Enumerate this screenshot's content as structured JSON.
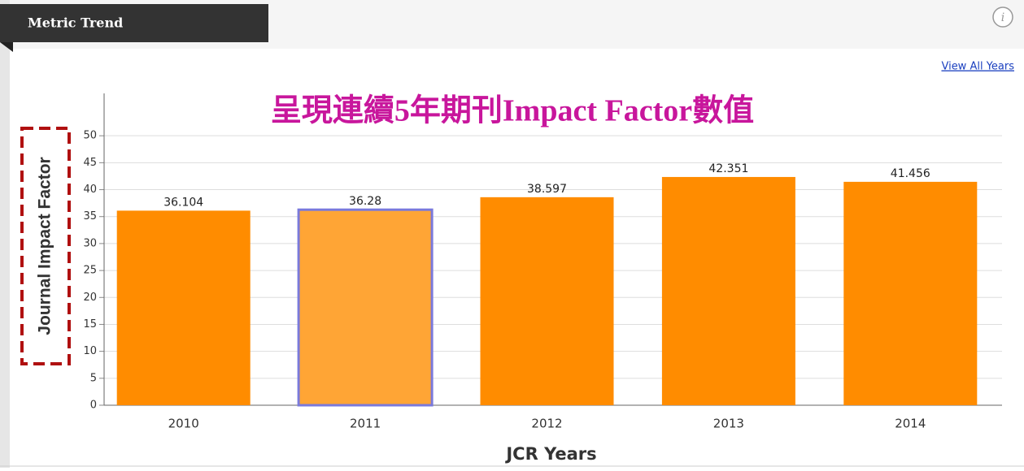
{
  "header": {
    "tab": "Metric Trend",
    "link": "View All Years"
  },
  "annotation": "呈現連續5年期刊Impact Factor數值",
  "chart_data": {
    "type": "bar",
    "xlabel": "JCR Years",
    "ylabel": "Journal Impact Factor",
    "categories": [
      "2010",
      "2011",
      "2012",
      "2013",
      "2014"
    ],
    "values": [
      36.104,
      36.28,
      38.597,
      42.351,
      41.456
    ],
    "color": "#ff8c00",
    "highlight": "2011",
    "highlight_color": "#ffa535",
    "highlight_stroke": "#7a7adc",
    "ylim": [
      0,
      55
    ],
    "yticks": [
      0,
      5,
      10,
      15,
      20,
      25,
      30,
      35,
      40,
      45,
      50
    ],
    "grid": true
  }
}
